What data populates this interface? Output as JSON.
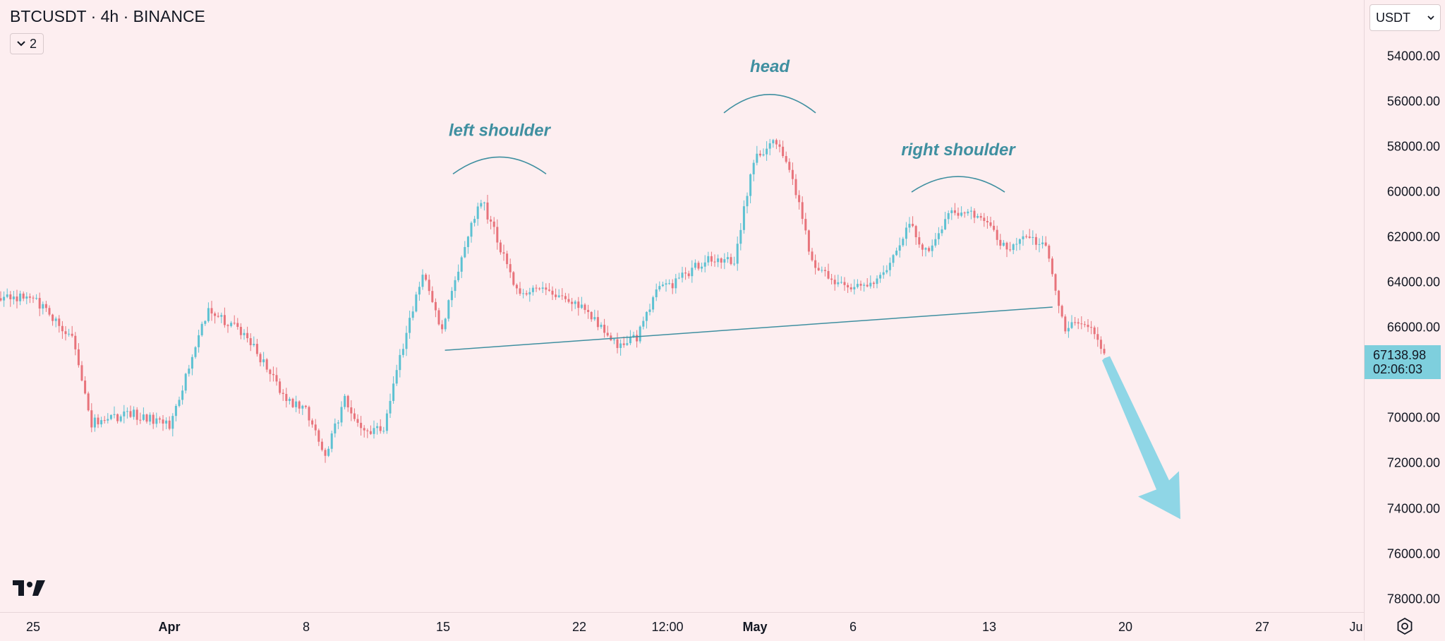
{
  "header": {
    "symbol_title": "BTCUSDT · 4h · BINANCE",
    "indicator_count": "2"
  },
  "currency_select": {
    "value": "USDT"
  },
  "colors": {
    "up": "#e8737b",
    "down": "#5dc1d2",
    "annotation": "#3f8fa0",
    "arrow": "#8fd6e6",
    "background": "#fdeef0"
  },
  "icons": [
    "chevron-down-icon",
    "settings-icon",
    "tradingview-logo"
  ],
  "chart_data": {
    "type": "candlestick",
    "title": "BTCUSDT · 4h · BINANCE",
    "y_axis_inverted": true,
    "ylim": [
      53100,
      79400
    ],
    "y_ticks": [
      "54000.00",
      "56000.00",
      "58000.00",
      "60000.00",
      "62000.00",
      "64000.00",
      "66000.00",
      "70000.00",
      "72000.00",
      "74000.00",
      "76000.00",
      "78000.00"
    ],
    "x_ticks": [
      "25",
      "Apr",
      "8",
      "15",
      "22",
      "12:00",
      "May",
      "6",
      "13",
      "20",
      "27",
      "Ju"
    ],
    "last_price": "67138.98",
    "countdown": "02:06:03",
    "annotations": [
      {
        "label": "left shoulder",
        "price": 59800
      },
      {
        "label": "head",
        "price": 57100
      },
      {
        "label": "right shoulder",
        "price": 60600
      }
    ],
    "neckline": {
      "start": {
        "date": "Apr 15",
        "price": 67000
      },
      "end": {
        "date": "May 17",
        "price": 65000
      }
    },
    "projection": {
      "direction": "down",
      "from_price": 67200,
      "to_price": 74400
    },
    "path": [
      {
        "date": "Mar 25",
        "price": 64700
      },
      {
        "date": "Mar 27",
        "price": 66500
      },
      {
        "date": "Mar 28",
        "price": 70200
      },
      {
        "date": "Mar 30",
        "price": 69800
      },
      {
        "date": "Apr 1",
        "price": 70300
      },
      {
        "date": "Apr 3",
        "price": 65200
      },
      {
        "date": "Apr 5",
        "price": 66400
      },
      {
        "date": "Apr 7",
        "price": 69200
      },
      {
        "date": "Apr 8",
        "price": 69600
      },
      {
        "date": "Apr 9",
        "price": 71600
      },
      {
        "date": "Apr 10",
        "price": 69200
      },
      {
        "date": "Apr 11",
        "price": 70500
      },
      {
        "date": "Apr 12",
        "price": 70500
      },
      {
        "date": "Apr 13",
        "price": 66800
      },
      {
        "date": "Apr 14",
        "price": 63600
      },
      {
        "date": "Apr 15",
        "price": 66100
      },
      {
        "date": "Apr 16",
        "price": 62800
      },
      {
        "date": "Apr 17",
        "price": 60300
      },
      {
        "date": "Apr 18",
        "price": 62500
      },
      {
        "date": "Apr 19",
        "price": 64700
      },
      {
        "date": "Apr 20",
        "price": 64100
      },
      {
        "date": "Apr 22",
        "price": 65000
      },
      {
        "date": "Apr 24",
        "price": 66700
      },
      {
        "date": "Apr 25",
        "price": 66400
      },
      {
        "date": "Apr 26",
        "price": 64300
      },
      {
        "date": "Apr 27",
        "price": 64000
      },
      {
        "date": "Apr 28",
        "price": 63300
      },
      {
        "date": "Apr 29",
        "price": 62900
      },
      {
        "date": "Apr 30",
        "price": 63000
      },
      {
        "date": "May 1",
        "price": 58700
      },
      {
        "date": "May 2",
        "price": 57600
      },
      {
        "date": "May 3",
        "price": 59400
      },
      {
        "date": "May 4",
        "price": 63100
      },
      {
        "date": "May 5",
        "price": 64000
      },
      {
        "date": "May 6",
        "price": 64300
      },
      {
        "date": "May 7",
        "price": 64000
      },
      {
        "date": "May 8",
        "price": 63200
      },
      {
        "date": "May 9",
        "price": 61500
      },
      {
        "date": "May 10",
        "price": 62800
      },
      {
        "date": "May 11",
        "price": 60900
      },
      {
        "date": "May 12",
        "price": 61000
      },
      {
        "date": "May 13",
        "price": 61200
      },
      {
        "date": "May 14",
        "price": 62700
      },
      {
        "date": "May 15",
        "price": 61900
      },
      {
        "date": "May 16",
        "price": 62400
      },
      {
        "date": "May 17",
        "price": 66100
      },
      {
        "date": "May 18",
        "price": 65700
      },
      {
        "date": "May 19",
        "price": 67138.98
      }
    ]
  }
}
